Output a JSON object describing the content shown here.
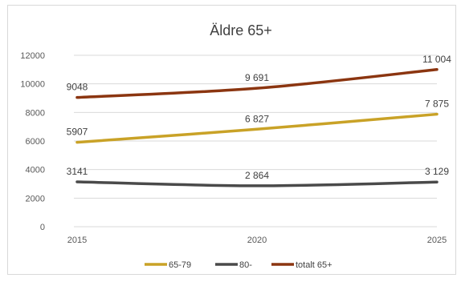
{
  "chart_data": {
    "type": "line",
    "title": "Äldre 65+",
    "xlabel": "",
    "ylabel": "",
    "x": [
      "2015",
      "2020",
      "2025"
    ],
    "y_ticks": [
      "0",
      "2000",
      "4000",
      "6000",
      "8000",
      "10000",
      "12000"
    ],
    "ylim": [
      0,
      12000
    ],
    "grid": true,
    "legend_position": "bottom",
    "series": [
      {
        "name": "65-79",
        "color": "#c9a227",
        "values": [
          5907,
          6827,
          7875
        ],
        "labels": [
          "5907",
          "6 827",
          "7 875"
        ]
      },
      {
        "name": "80-",
        "color": "#4a4a4a",
        "values": [
          3141,
          2864,
          3129
        ],
        "labels": [
          "3141",
          "2 864",
          "3 129"
        ]
      },
      {
        "name": "totalt 65+",
        "color": "#8b3510",
        "values": [
          9048,
          9691,
          11004
        ],
        "labels": [
          "9048",
          "9 691",
          "11 004"
        ]
      }
    ]
  }
}
